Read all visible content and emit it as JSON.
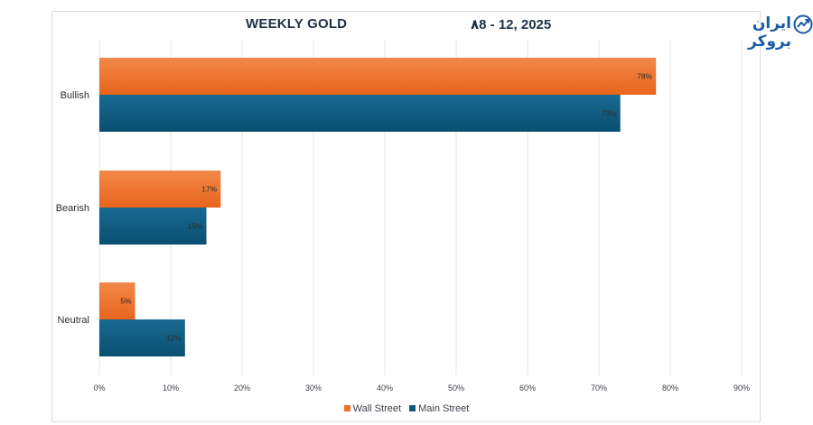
{
  "header": {
    "title_left": "WEEKLY GOLD",
    "brand_name": "ایران بروکر",
    "title_right": "۸8 - 12, 2025"
  },
  "colors": {
    "wall_street": "#ee7127",
    "main_street": "#0d5a7e",
    "grid": "#dde7f0",
    "brand": "#1a5aa8"
  },
  "icons": {
    "brand": "trend-chart-icon"
  },
  "chart_data": {
    "type": "bar",
    "orientation": "horizontal",
    "categories": [
      "Bullish",
      "Bearish",
      "Neutral"
    ],
    "series": [
      {
        "name": "Wall Street",
        "values": [
          78,
          17,
          5
        ],
        "labels": [
          "78%",
          "17%",
          "5%"
        ]
      },
      {
        "name": "Main Street",
        "values": [
          73,
          15,
          12
        ],
        "labels": [
          "73%",
          "15%",
          "12%"
        ]
      }
    ],
    "xlim": [
      0,
      90
    ],
    "xticks": [
      0,
      10,
      20,
      30,
      40,
      50,
      60,
      70,
      80,
      90
    ],
    "xtick_labels": [
      "0%",
      "10%",
      "20%",
      "30%",
      "40%",
      "50%",
      "60%",
      "70%",
      "80%",
      "90%"
    ],
    "grid": true,
    "legend_position": "bottom-center"
  }
}
